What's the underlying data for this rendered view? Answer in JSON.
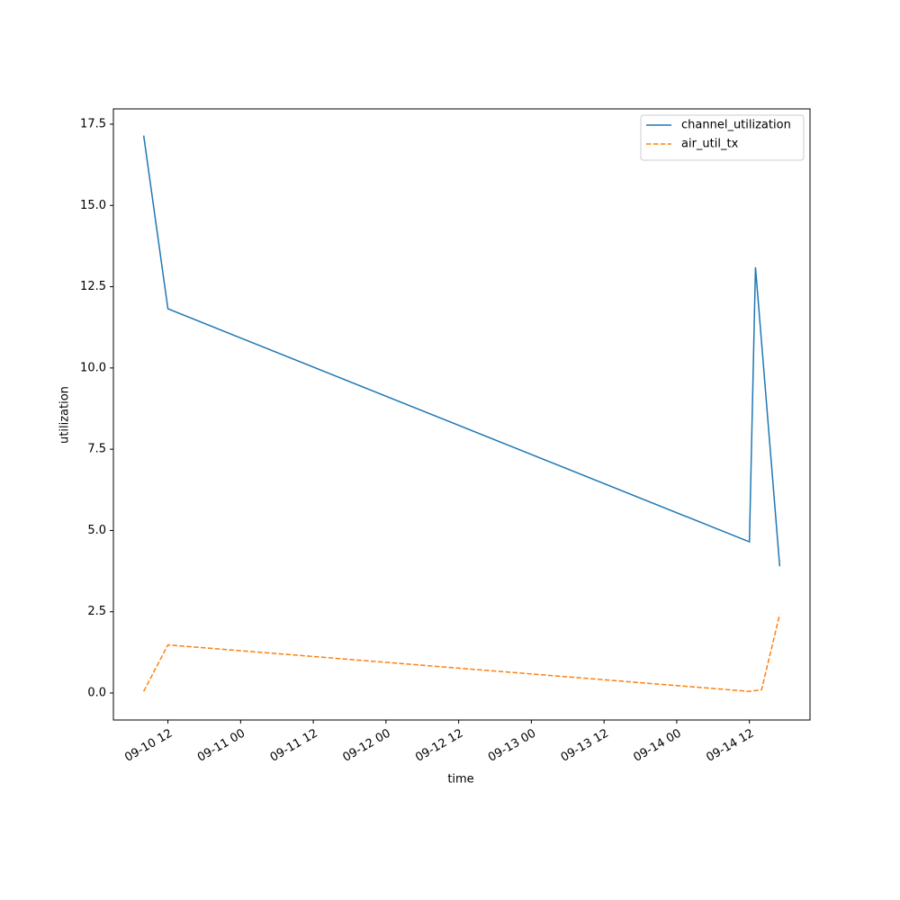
{
  "chart_data": {
    "type": "line",
    "xlabel": "time",
    "ylabel": "utilization",
    "series": [
      {
        "name": "channel_utilization",
        "color": "#1f77b4",
        "dash": "solid",
        "x": [
          "09-10 08",
          "09-10 12",
          "09-14 12",
          "09-14 13",
          "09-14 17"
        ],
        "values": [
          17.15,
          11.82,
          4.65,
          13.1,
          3.9
        ]
      },
      {
        "name": "air_util_tx",
        "color": "#ff7f0e",
        "dash": "dashed",
        "x": [
          "09-10 08",
          "09-10 12",
          "09-14 12",
          "09-14 14",
          "09-14 17"
        ],
        "values": [
          0.05,
          1.48,
          0.05,
          0.1,
          2.42
        ]
      }
    ],
    "xlim": [
      "09-10 03",
      "09-14 22"
    ],
    "xticks": [
      "09-10 12",
      "09-11 00",
      "09-11 12",
      "09-12 00",
      "09-12 12",
      "09-13 00",
      "09-13 12",
      "09-14 00",
      "09-14 12"
    ],
    "ylim": [
      -0.83,
      17.97
    ],
    "yticks": [
      {
        "value": 0,
        "label": "0.0"
      },
      {
        "value": 2.5,
        "label": "2.5"
      },
      {
        "value": 5,
        "label": "5.0"
      },
      {
        "value": 7.5,
        "label": "7.5"
      },
      {
        "value": 10,
        "label": "10.0"
      },
      {
        "value": 12.5,
        "label": "12.5"
      },
      {
        "value": 15,
        "label": "15.0"
      },
      {
        "value": 17.5,
        "label": "17.5"
      }
    ],
    "legend": "upper right"
  }
}
